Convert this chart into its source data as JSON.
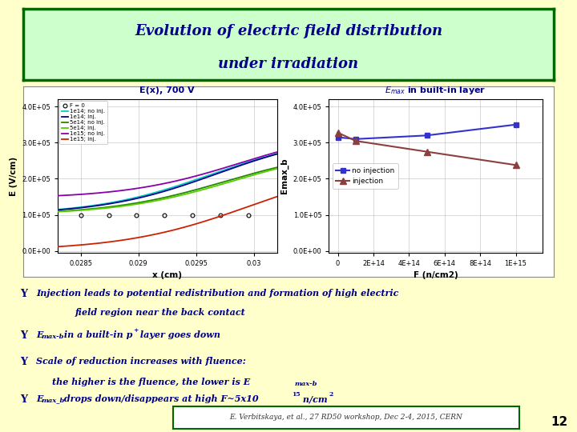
{
  "title_line1": "Evolution of electric field distribution",
  "title_line2": "under irradiation",
  "title_color": "#00008B",
  "title_bg_color": "#ccffcc",
  "title_border_color": "#006600",
  "slide_bg": "#ffffcc",
  "plot1_title": "E(x), 700 V",
  "plot1_xlabel": "x (cm)",
  "plot1_ylabel": "E (V/cm)",
  "plot1_xlim": [
    0.0283,
    0.0302
  ],
  "plot1_ylim": [
    -5000.0,
    420000.0
  ],
  "plot1_xticks": [
    0.0285,
    0.029,
    0.0295,
    0.03
  ],
  "plot1_yticks": [
    0,
    100000.0,
    200000.0,
    300000.0,
    400000.0
  ],
  "plot1_ytick_labels": [
    "0.0E+00",
    "1.0E+05",
    "2.0E+05",
    "3.0E+05",
    "4.0E+05"
  ],
  "plot1_xtick_labels": [
    "0.0285",
    "0.029",
    "0.0295",
    "0.03"
  ],
  "plot2_xlabel": "F (n/cm2)",
  "plot2_ylabel": "Emax_b",
  "plot2_xlim": [
    -50000000000000.0,
    1150000000000000.0
  ],
  "plot2_ylim": [
    -5000.0,
    420000.0
  ],
  "plot2_xticks": [
    0,
    200000000000000.0,
    400000000000000.0,
    600000000000000.0,
    800000000000000.0,
    1000000000000000.0
  ],
  "plot2_xtick_labels": [
    "0",
    "2E+14",
    "4E+14",
    "6E+14",
    "8E+14",
    "1E+15"
  ],
  "plot2_yticks": [
    0,
    100000.0,
    200000.0,
    300000.0,
    400000.0
  ],
  "plot2_ytick_labels": [
    "0.0E+00",
    "1.0E+05",
    "2.0E+05",
    "3.0E+05",
    "4.0E+05"
  ],
  "text_color": "#00008B",
  "checkmark": "Υ",
  "ref_text": "E. Verbitskaya, et al., 27 RD50 workshop, Dec 2-4, 2015, CERN",
  "page_num": "12",
  "no_inj_color": "#3333cc",
  "inj_color": "#8B4040",
  "no_inj_data_x": [
    0,
    100000000000000.0,
    500000000000000.0,
    1000000000000000.0
  ],
  "no_inj_data_y": [
    315000.0,
    310000.0,
    320000.0,
    350000.0
  ],
  "inj_data_x": [
    0,
    100000000000000.0,
    500000000000000.0,
    1000000000000000.0
  ],
  "inj_data_y": [
    328000.0,
    305000.0,
    275000.0,
    238000.0
  ],
  "curve_colors": [
    "#000000",
    "#00CCCC",
    "#000088",
    "#228800",
    "#55CC00",
    "#8800AA",
    "#CC2200"
  ],
  "curve_labels": [
    "F = 0",
    "1e14; no inj.",
    "1e14; inj.",
    "5e14; no inj.",
    "5e14; inj.",
    "1e15; no inj.",
    "1e15; inj."
  ],
  "curve_x0s": [
    0.0297,
    0.02962,
    0.02968,
    0.02975,
    0.02982,
    0.02988,
    0.02997
  ],
  "curve_ymaxs": [
    100000.0,
    322000.0,
    328000.0,
    285000.0,
    288000.0,
    342000.0,
    250000.0
  ],
  "curve_ymins": [
    100000.0,
    100000.0,
    100000.0,
    100000.0,
    100000.0,
    145000.0,
    0.0
  ],
  "curve_steepness": [
    2000,
    2000,
    2000,
    2000,
    2000,
    2000,
    1800
  ]
}
